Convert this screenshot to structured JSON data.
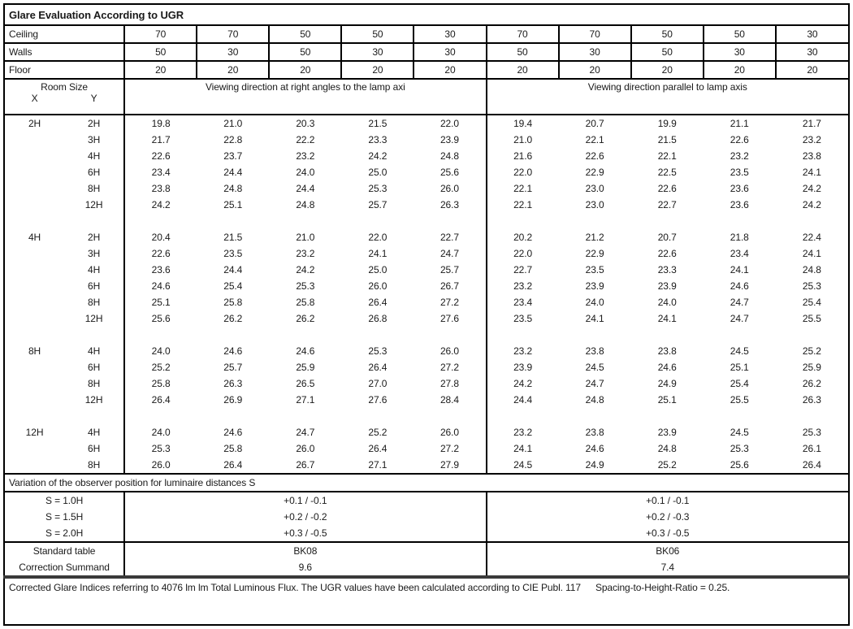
{
  "title": "Glare Evaluation According to UGR",
  "surface_rows": [
    {
      "label": "Ceiling",
      "values": [
        "70",
        "70",
        "50",
        "50",
        "30",
        "70",
        "70",
        "50",
        "50",
        "30"
      ]
    },
    {
      "label": "Walls",
      "values": [
        "50",
        "30",
        "50",
        "30",
        "30",
        "50",
        "30",
        "50",
        "30",
        "30"
      ]
    },
    {
      "label": "Floor",
      "values": [
        "20",
        "20",
        "20",
        "20",
        "20",
        "20",
        "20",
        "20",
        "20",
        "20"
      ]
    }
  ],
  "header": {
    "room_size": "Room Size",
    "x": "X",
    "y": "Y",
    "left_span": "Viewing direction at right angles to the lamp axi",
    "right_span": "Viewing direction parallel to lamp axis"
  },
  "ugr_groups": [
    {
      "x": "2H",
      "rows": [
        {
          "y": "2H",
          "right_angles": [
            "19.8",
            "21.0",
            "20.3",
            "21.5",
            "22.0"
          ],
          "parallel": [
            "19.4",
            "20.7",
            "19.9",
            "21.1",
            "21.7"
          ]
        },
        {
          "y": "3H",
          "right_angles": [
            "21.7",
            "22.8",
            "22.2",
            "23.3",
            "23.9"
          ],
          "parallel": [
            "21.0",
            "22.1",
            "21.5",
            "22.6",
            "23.2"
          ]
        },
        {
          "y": "4H",
          "right_angles": [
            "22.6",
            "23.7",
            "23.2",
            "24.2",
            "24.8"
          ],
          "parallel": [
            "21.6",
            "22.6",
            "22.1",
            "23.2",
            "23.8"
          ]
        },
        {
          "y": "6H",
          "right_angles": [
            "23.4",
            "24.4",
            "24.0",
            "25.0",
            "25.6"
          ],
          "parallel": [
            "22.0",
            "22.9",
            "22.5",
            "23.5",
            "24.1"
          ]
        },
        {
          "y": "8H",
          "right_angles": [
            "23.8",
            "24.8",
            "24.4",
            "25.3",
            "26.0"
          ],
          "parallel": [
            "22.1",
            "23.0",
            "22.6",
            "23.6",
            "24.2"
          ]
        },
        {
          "y": "12H",
          "right_angles": [
            "24.2",
            "25.1",
            "24.8",
            "25.7",
            "26.3"
          ],
          "parallel": [
            "22.1",
            "23.0",
            "22.7",
            "23.6",
            "24.2"
          ]
        }
      ]
    },
    {
      "x": "4H",
      "rows": [
        {
          "y": "2H",
          "right_angles": [
            "20.4",
            "21.5",
            "21.0",
            "22.0",
            "22.7"
          ],
          "parallel": [
            "20.2",
            "21.2",
            "20.7",
            "21.8",
            "22.4"
          ]
        },
        {
          "y": "3H",
          "right_angles": [
            "22.6",
            "23.5",
            "23.2",
            "24.1",
            "24.7"
          ],
          "parallel": [
            "22.0",
            "22.9",
            "22.6",
            "23.4",
            "24.1"
          ]
        },
        {
          "y": "4H",
          "right_angles": [
            "23.6",
            "24.4",
            "24.2",
            "25.0",
            "25.7"
          ],
          "parallel": [
            "22.7",
            "23.5",
            "23.3",
            "24.1",
            "24.8"
          ]
        },
        {
          "y": "6H",
          "right_angles": [
            "24.6",
            "25.4",
            "25.3",
            "26.0",
            "26.7"
          ],
          "parallel": [
            "23.2",
            "23.9",
            "23.9",
            "24.6",
            "25.3"
          ]
        },
        {
          "y": "8H",
          "right_angles": [
            "25.1",
            "25.8",
            "25.8",
            "26.4",
            "27.2"
          ],
          "parallel": [
            "23.4",
            "24.0",
            "24.0",
            "24.7",
            "25.4"
          ]
        },
        {
          "y": "12H",
          "right_angles": [
            "25.6",
            "26.2",
            "26.2",
            "26.8",
            "27.6"
          ],
          "parallel": [
            "23.5",
            "24.1",
            "24.1",
            "24.7",
            "25.5"
          ]
        }
      ]
    },
    {
      "x": "8H",
      "rows": [
        {
          "y": "4H",
          "right_angles": [
            "24.0",
            "24.6",
            "24.6",
            "25.3",
            "26.0"
          ],
          "parallel": [
            "23.2",
            "23.8",
            "23.8",
            "24.5",
            "25.2"
          ]
        },
        {
          "y": "6H",
          "right_angles": [
            "25.2",
            "25.7",
            "25.9",
            "26.4",
            "27.2"
          ],
          "parallel": [
            "23.9",
            "24.5",
            "24.6",
            "25.1",
            "25.9"
          ]
        },
        {
          "y": "8H",
          "right_angles": [
            "25.8",
            "26.3",
            "26.5",
            "27.0",
            "27.8"
          ],
          "parallel": [
            "24.2",
            "24.7",
            "24.9",
            "25.4",
            "26.2"
          ]
        },
        {
          "y": "12H",
          "right_angles": [
            "26.4",
            "26.9",
            "27.1",
            "27.6",
            "28.4"
          ],
          "parallel": [
            "24.4",
            "24.8",
            "25.1",
            "25.5",
            "26.3"
          ]
        }
      ]
    },
    {
      "x": "12H",
      "rows": [
        {
          "y": "4H",
          "right_angles": [
            "24.0",
            "24.6",
            "24.7",
            "25.2",
            "26.0"
          ],
          "parallel": [
            "23.2",
            "23.8",
            "23.9",
            "24.5",
            "25.3"
          ]
        },
        {
          "y": "6H",
          "right_angles": [
            "25.3",
            "25.8",
            "26.0",
            "26.4",
            "27.2"
          ],
          "parallel": [
            "24.1",
            "24.6",
            "24.8",
            "25.3",
            "26.1"
          ]
        },
        {
          "y": "8H",
          "right_angles": [
            "26.0",
            "26.4",
            "26.7",
            "27.1",
            "27.9"
          ],
          "parallel": [
            "24.5",
            "24.9",
            "25.2",
            "25.6",
            "26.4"
          ]
        }
      ]
    }
  ],
  "variation": {
    "header": "Variation of the observer position for luminaire distances S",
    "rows": [
      {
        "label": "S = 1.0H",
        "left": "+0.1 / -0.1",
        "right": "+0.1 / -0.1"
      },
      {
        "label": "S = 1.5H",
        "left": "+0.2 / -0.2",
        "right": "+0.2 / -0.3"
      },
      {
        "label": "S = 2.0H",
        "left": "+0.3 / -0.5",
        "right": "+0.3 / -0.5"
      }
    ]
  },
  "summary_rows": [
    {
      "label": "Standard table",
      "left": "BK08",
      "right": "BK06"
    },
    {
      "label": "Correction Summand",
      "left": "9.6",
      "right": "7.4"
    }
  ],
  "footer": {
    "text": "Corrected Glare Indices referring to 4076 lm lm Total Luminous Flux. The UGR values have been calculated according to CIE Publ. 117",
    "ratio": "Spacing-to-Height-Ratio = 0.25."
  }
}
